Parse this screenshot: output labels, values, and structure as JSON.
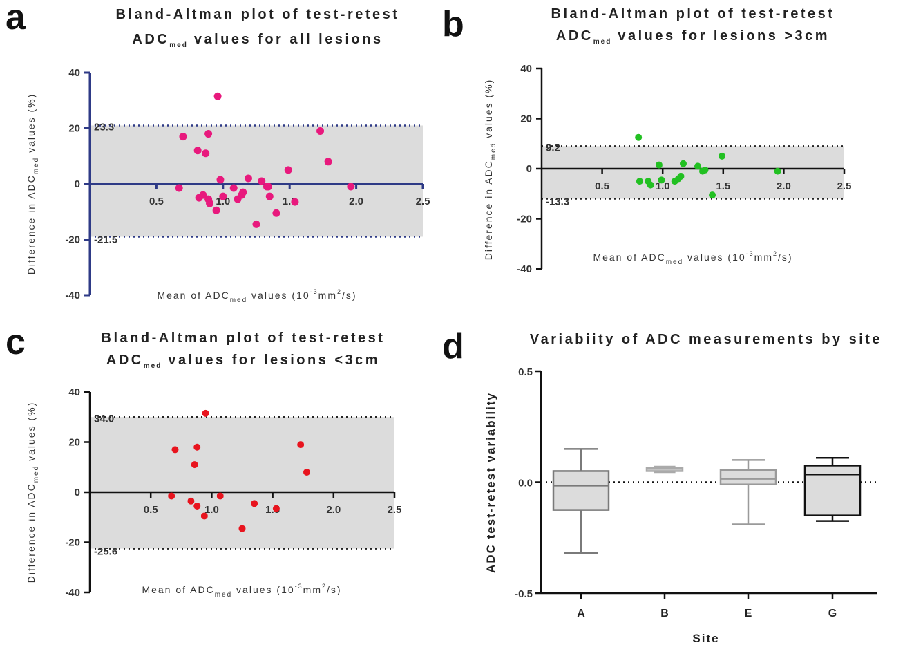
{
  "chart_data": [
    {
      "panel": "a",
      "type": "scatter",
      "title_lines": [
        {
          "text": "Bland-Altman plot of test-retest"
        },
        {
          "pre": "ADC",
          "sub": "med",
          "post": " values for all lesions"
        }
      ],
      "xlabel": {
        "pre": "Mean of ADC",
        "sub": "med",
        "mid": " values (10",
        "sup1": "-3",
        "mid2": "mm",
        "sup2": "2",
        "post": "/s)"
      },
      "ylabel": {
        "pre": "Difference in ADC",
        "sub": "med",
        "post": " values (%)"
      },
      "xlim": [
        0,
        2.5
      ],
      "ylim": [
        -40,
        40
      ],
      "xticks": [
        "0.5",
        "1.0",
        "1.5",
        "2.0",
        "2.5"
      ],
      "yticks": [
        "-40",
        "-20",
        "0",
        "20",
        "40"
      ],
      "limits_of_agreement": {
        "upper": 21,
        "lower": -19,
        "upper_label": "23.3",
        "lower_label": "-21.5"
      },
      "color": "#e8197d",
      "points": [
        [
          0.67,
          -1.5
        ],
        [
          0.7,
          17
        ],
        [
          0.81,
          12
        ],
        [
          0.82,
          -5
        ],
        [
          0.85,
          -4
        ],
        [
          0.87,
          11
        ],
        [
          0.89,
          -5.5
        ],
        [
          0.89,
          18
        ],
        [
          0.9,
          -7
        ],
        [
          0.95,
          -9.5
        ],
        [
          0.96,
          31.5
        ],
        [
          0.98,
          1.5
        ],
        [
          1.0,
          -4.5
        ],
        [
          1.08,
          -1.5
        ],
        [
          1.11,
          -5.5
        ],
        [
          1.14,
          -4
        ],
        [
          1.15,
          -3
        ],
        [
          1.19,
          2
        ],
        [
          1.25,
          -14.5
        ],
        [
          1.29,
          1
        ],
        [
          1.33,
          -1
        ],
        [
          1.34,
          -1
        ],
        [
          1.35,
          -4.5
        ],
        [
          1.4,
          -10.5
        ],
        [
          1.49,
          5
        ],
        [
          1.54,
          -6.5
        ],
        [
          1.73,
          19
        ],
        [
          1.79,
          8
        ],
        [
          1.96,
          -1
        ]
      ]
    },
    {
      "panel": "b",
      "type": "scatter",
      "title_lines": [
        {
          "text": "Bland-Altman plot of test-retest"
        },
        {
          "pre": "ADC",
          "sub": "med",
          "post": " values for lesions >3cm"
        }
      ],
      "xlabel": {
        "pre": "Mean of ADC",
        "sub": "med",
        "mid": " values (10",
        "sup1": "-3",
        "mid2": "mm",
        "sup2": "2",
        "post": "/s)"
      },
      "ylabel": {
        "pre": "Difference in ADC",
        "sub": "med",
        "post": " values (%)"
      },
      "xlim": [
        0,
        2.5
      ],
      "ylim": [
        -40,
        40
      ],
      "xticks": [
        "0.5",
        "1.0",
        "1.5",
        "2.0",
        "2.5"
      ],
      "yticks": [
        "-40",
        "-20",
        "0",
        "20",
        "40"
      ],
      "limits_of_agreement": {
        "upper": 9,
        "lower": -12,
        "upper_label": "9.2",
        "lower_label": "-13.3"
      },
      "color": "#22c022",
      "points": [
        [
          0.8,
          12.5
        ],
        [
          0.81,
          -5
        ],
        [
          0.88,
          -5
        ],
        [
          0.9,
          -6.5
        ],
        [
          0.97,
          1.5
        ],
        [
          0.99,
          -4.5
        ],
        [
          1.1,
          -5
        ],
        [
          1.13,
          -4
        ],
        [
          1.15,
          -3
        ],
        [
          1.17,
          2
        ],
        [
          1.29,
          1
        ],
        [
          1.33,
          -1
        ],
        [
          1.35,
          -0.5
        ],
        [
          1.41,
          -10.5
        ],
        [
          1.49,
          5
        ],
        [
          1.95,
          -1
        ]
      ]
    },
    {
      "panel": "c",
      "type": "scatter",
      "title_lines": [
        {
          "text": "Bland-Altman plot of test-retest"
        },
        {
          "pre": "ADC",
          "sub": "med",
          "post": " values for lesions <3cm"
        }
      ],
      "xlabel": {
        "pre": "Mean of ADC",
        "sub": "med",
        "mid": " values (10",
        "sup1": "-3",
        "mid2": "mm",
        "sup2": "2",
        "post": "/s)"
      },
      "ylabel": {
        "pre": "Difference in ADC",
        "sub": "med",
        "post": " values (%)"
      },
      "xlim": [
        0,
        2.5
      ],
      "ylim": [
        -40,
        40
      ],
      "xticks": [
        "0.5",
        "1.0",
        "1.5",
        "2.0",
        "2.5"
      ],
      "yticks": [
        "-40",
        "-20",
        "0",
        "20",
        "40"
      ],
      "limits_of_agreement": {
        "upper": 30,
        "lower": -22.5,
        "upper_label": "34.0",
        "lower_label": "-25.6"
      },
      "color": "#e8141e",
      "points": [
        [
          0.67,
          -1.5
        ],
        [
          0.7,
          17
        ],
        [
          0.83,
          -3.5
        ],
        [
          0.86,
          11
        ],
        [
          0.88,
          -5.5
        ],
        [
          0.88,
          18
        ],
        [
          0.94,
          -9.5
        ],
        [
          0.95,
          31.5
        ],
        [
          1.07,
          -1.5
        ],
        [
          1.25,
          -14.5
        ],
        [
          1.35,
          -4.5
        ],
        [
          1.53,
          -6.5
        ],
        [
          1.73,
          19
        ],
        [
          1.78,
          8
        ]
      ]
    },
    {
      "panel": "d",
      "type": "box",
      "title": "Variabiity of ADC measurements by site",
      "xlabel": "Site",
      "ylabel": "ADC test-retest variability",
      "ylim": [
        -0.5,
        0.5
      ],
      "yticks": [
        "-0.5",
        "0.0",
        "0.5"
      ],
      "reference_line": 0.0,
      "categories": [
        "A",
        "B",
        "E",
        "G"
      ],
      "boxes": [
        {
          "site": "A",
          "min": -0.32,
          "q1": -0.125,
          "median": -0.015,
          "q3": 0.05,
          "max": 0.15,
          "color": "#7a7a7a"
        },
        {
          "site": "B",
          "min": 0.045,
          "q1": 0.05,
          "median": 0.06,
          "q3": 0.065,
          "max": 0.07,
          "color": "#aaaaaa"
        },
        {
          "site": "E",
          "min": -0.19,
          "q1": -0.01,
          "median": 0.015,
          "q3": 0.055,
          "max": 0.1,
          "color": "#9a9a9a"
        },
        {
          "site": "G",
          "min": -0.175,
          "q1": -0.15,
          "median": 0.035,
          "q3": 0.075,
          "max": 0.11,
          "color": "#111111"
        }
      ]
    }
  ]
}
